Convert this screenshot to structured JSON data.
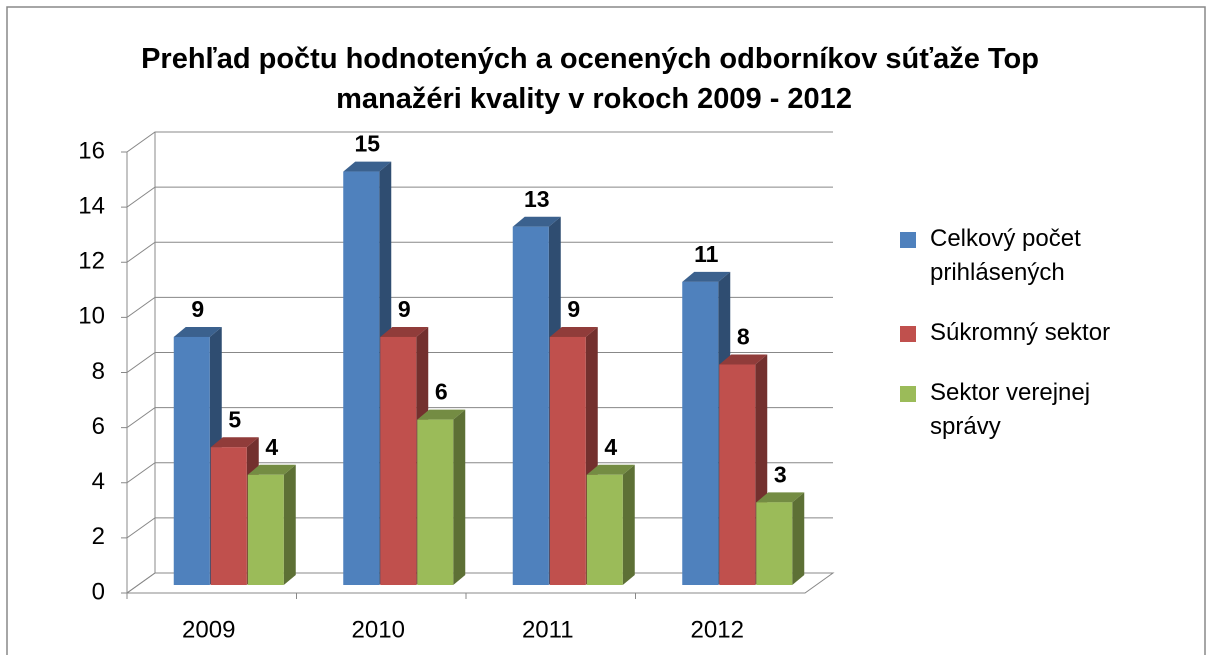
{
  "chart_data": {
    "type": "bar3d",
    "title": "Prehľad počtu hodnotených a ocenených odborníkov súťaže Top manažéri kvality v rokoch 2009 - 2012",
    "categories": [
      "2009",
      "2010",
      "2011",
      "2012"
    ],
    "series": [
      {
        "name": "Celkový počet prihlásených",
        "color": "#4f81bd",
        "values": [
          9,
          15,
          13,
          11
        ]
      },
      {
        "name": "Súkromný sektor",
        "color": "#c0504d",
        "values": [
          5,
          9,
          9,
          8
        ]
      },
      {
        "name": "Sektor verejnej správy",
        "color": "#9bbb59",
        "values": [
          4,
          6,
          4,
          3
        ]
      }
    ],
    "ylim": [
      0,
      16
    ],
    "yticks": [
      0,
      2,
      4,
      6,
      8,
      10,
      12,
      14,
      16
    ],
    "grid": true,
    "legend": "right"
  }
}
